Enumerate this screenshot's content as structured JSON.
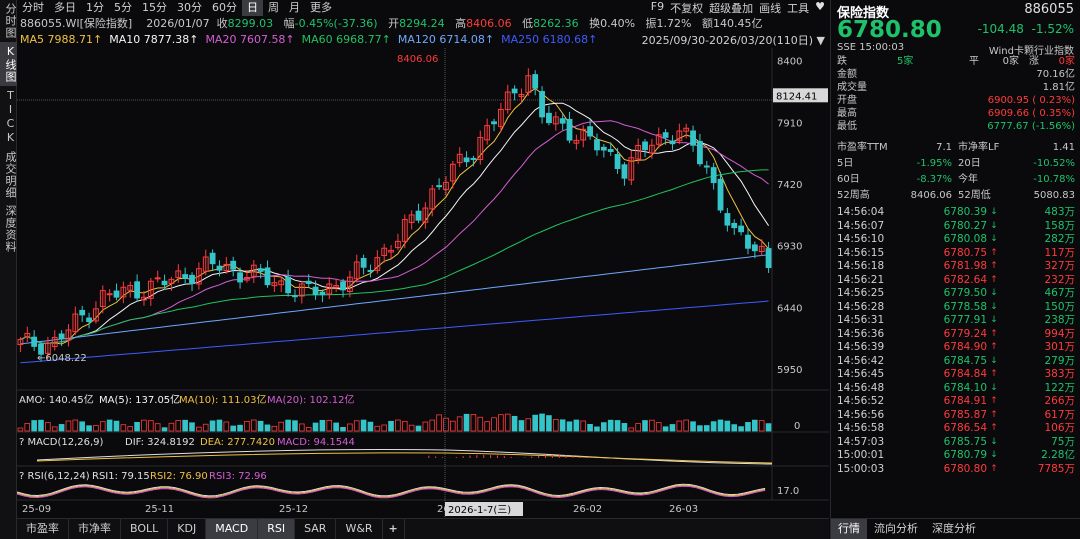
{
  "vtabs": [
    "分时图",
    "K线图",
    "TICK",
    "成交明细",
    "深度资料"
  ],
  "period_bar": {
    "items": [
      "分时",
      "多日",
      "1分",
      "5分",
      "15分",
      "30分",
      "60分",
      "日",
      "周",
      "月",
      "更多"
    ],
    "active": "日",
    "right": [
      "F9",
      "不复权",
      "超级叠加",
      "画线",
      "工具",
      "♥"
    ]
  },
  "info": {
    "code_name": "886055.WI[保险指数]",
    "date": "2026/01/07",
    "close_label": "收",
    "close": "8299.03",
    "amp_label": "幅",
    "amp": "-0.45%(-37.36)",
    "open_label": "开",
    "open": "8294.24",
    "high_label": "高",
    "high": "8406.06",
    "low_label": "低",
    "low": "8262.36",
    "turnover_label": "换",
    "turnover": "0.40%",
    "vol_label": "振",
    "vol": "1.72%",
    "amount_label": "额",
    "amount": "140.45亿"
  },
  "ma": {
    "ma5": "MA5 7988.71↑",
    "ma10": "MA10 7877.38↑",
    "ma20": "MA20 7607.58↑",
    "ma60": "MA60 6968.77↑",
    "ma120": "MA120 6714.08↑",
    "ma250": "MA250 6180.68↑",
    "range": "2025/09/30-2026/03/20(110日)"
  },
  "price_axis": [
    "8400",
    "7910",
    "7420",
    "6930",
    "6440",
    "5950"
  ],
  "crosshair_price": "8124.41",
  "high_marker": "8406.06",
  "low_marker": "6048.22",
  "amo": {
    "label": "AMO: 140.45亿",
    "ma5": "MA(5): 137.05亿",
    "ma10": "MA(10): 111.03亿",
    "ma20": "MA(20): 102.12亿",
    "axis": "0"
  },
  "macd": {
    "label": "MACD(12,26,9)",
    "dif": "DIF: 324.8192",
    "dea": "DEA: 277.7420",
    "macd": "MACD: 94.1544"
  },
  "rsi": {
    "label": "RSI(6,12,24)",
    "rsi1": "RSI1: 79.15",
    "rsi2": "RSI2: 76.90",
    "rsi3": "RSI3: 72.96",
    "axis": "17.0"
  },
  "date_axis": [
    "25-09",
    "25-11",
    "25-12",
    "26",
    "26-02",
    "26-03"
  ],
  "crosshair_date": "2026-1-7(三)",
  "bottom_tabs": [
    "市盈率",
    "市净率",
    "BOLL",
    "KDJ",
    "MACD",
    "RSI",
    "SAR",
    "W&R",
    "+"
  ],
  "bottom_active": [
    "MACD",
    "RSI"
  ],
  "right": {
    "title": "保险指数",
    "code": "886055",
    "price": "6780.80",
    "change": "-104.48",
    "change_pct": "-1.52%",
    "exchange_time": "SSE  15:00:03",
    "sector": "Wind卡颗行业指数",
    "breadth": [
      {
        "l": "跌",
        "v": "5家",
        "l2": "平",
        "v2": "0家",
        "l3": "涨",
        "v3": "0家"
      }
    ],
    "stats": [
      {
        "label": "金额",
        "value": "70.16亿",
        "cls": ""
      },
      {
        "label": "成交量",
        "value": "1.81亿",
        "cls": ""
      },
      {
        "label": "开盘",
        "value": "6900.95 ( 0.23%)",
        "cls": "up"
      },
      {
        "label": "最高",
        "value": "6909.66 ( 0.35%)",
        "cls": "up"
      },
      {
        "label": "最低",
        "value": "6777.67 (-1.56%)",
        "cls": "down"
      }
    ],
    "pairs": [
      {
        "l1": "市盈率TTM",
        "v1": "7.1",
        "l2": "市净率LF",
        "v2": "1.41",
        "c1": "",
        "c2": ""
      },
      {
        "l1": "5日",
        "v1": "-1.95%",
        "l2": "20日",
        "v2": "-10.52%",
        "c1": "down",
        "c2": "down"
      },
      {
        "l1": "60日",
        "v1": "-8.37%",
        "l2": "今年",
        "v2": "-10.78%",
        "c1": "down",
        "c2": "down"
      },
      {
        "l1": "52周高",
        "v1": "8406.06",
        "l2": "52周低",
        "v2": "5080.83",
        "c1": "",
        "c2": ""
      }
    ],
    "ticks": [
      {
        "t": "14:56:04",
        "p": "6780.39",
        "d": "down",
        "v": "483万"
      },
      {
        "t": "14:56:07",
        "p": "6780.27",
        "d": "down",
        "v": "158万"
      },
      {
        "t": "14:56:10",
        "p": "6780.08",
        "d": "down",
        "v": "282万"
      },
      {
        "t": "14:56:15",
        "p": "6780.75",
        "d": "up",
        "v": "117万"
      },
      {
        "t": "14:56:18",
        "p": "6781.98",
        "d": "up",
        "v": "327万"
      },
      {
        "t": "14:56:21",
        "p": "6782.64",
        "d": "up",
        "v": "232万"
      },
      {
        "t": "14:56:25",
        "p": "6779.50",
        "d": "down",
        "v": "467万"
      },
      {
        "t": "14:56:28",
        "p": "6778.58",
        "d": "down",
        "v": "150万"
      },
      {
        "t": "14:56:31",
        "p": "6777.91",
        "d": "down",
        "v": "238万"
      },
      {
        "t": "14:56:36",
        "p": "6779.24",
        "d": "up",
        "v": "994万"
      },
      {
        "t": "14:56:39",
        "p": "6784.90",
        "d": "up",
        "v": "301万"
      },
      {
        "t": "14:56:42",
        "p": "6784.75",
        "d": "down",
        "v": "279万"
      },
      {
        "t": "14:56:45",
        "p": "6784.84",
        "d": "up",
        "v": "383万"
      },
      {
        "t": "14:56:48",
        "p": "6784.10",
        "d": "down",
        "v": "122万"
      },
      {
        "t": "14:56:52",
        "p": "6784.91",
        "d": "up",
        "v": "266万"
      },
      {
        "t": "14:56:56",
        "p": "6785.87",
        "d": "up",
        "v": "617万"
      },
      {
        "t": "14:56:58",
        "p": "6786.54",
        "d": "up",
        "v": "106万"
      },
      {
        "t": "14:57:03",
        "p": "6785.75",
        "d": "down",
        "v": "75万"
      },
      {
        "t": "15:00:01",
        "p": "6780.79",
        "d": "down",
        "v": "2.28亿"
      },
      {
        "t": "15:00:03",
        "p": "6780.80",
        "d": "up",
        "v": "7785万"
      }
    ],
    "tabs": [
      "行情",
      "流向分析",
      "深度分析"
    ],
    "active_tab": "行情"
  },
  "colors": {
    "up": "#ff3b3b",
    "down": "#1ec26b",
    "bg": "#0a0a0c",
    "ma5": "#f0c040",
    "ma10": "#f5f5f5",
    "ma20": "#d35fd3",
    "ma60": "#21c15f",
    "ma120": "#6fa8ff",
    "ma250": "#3f5bff"
  }
}
